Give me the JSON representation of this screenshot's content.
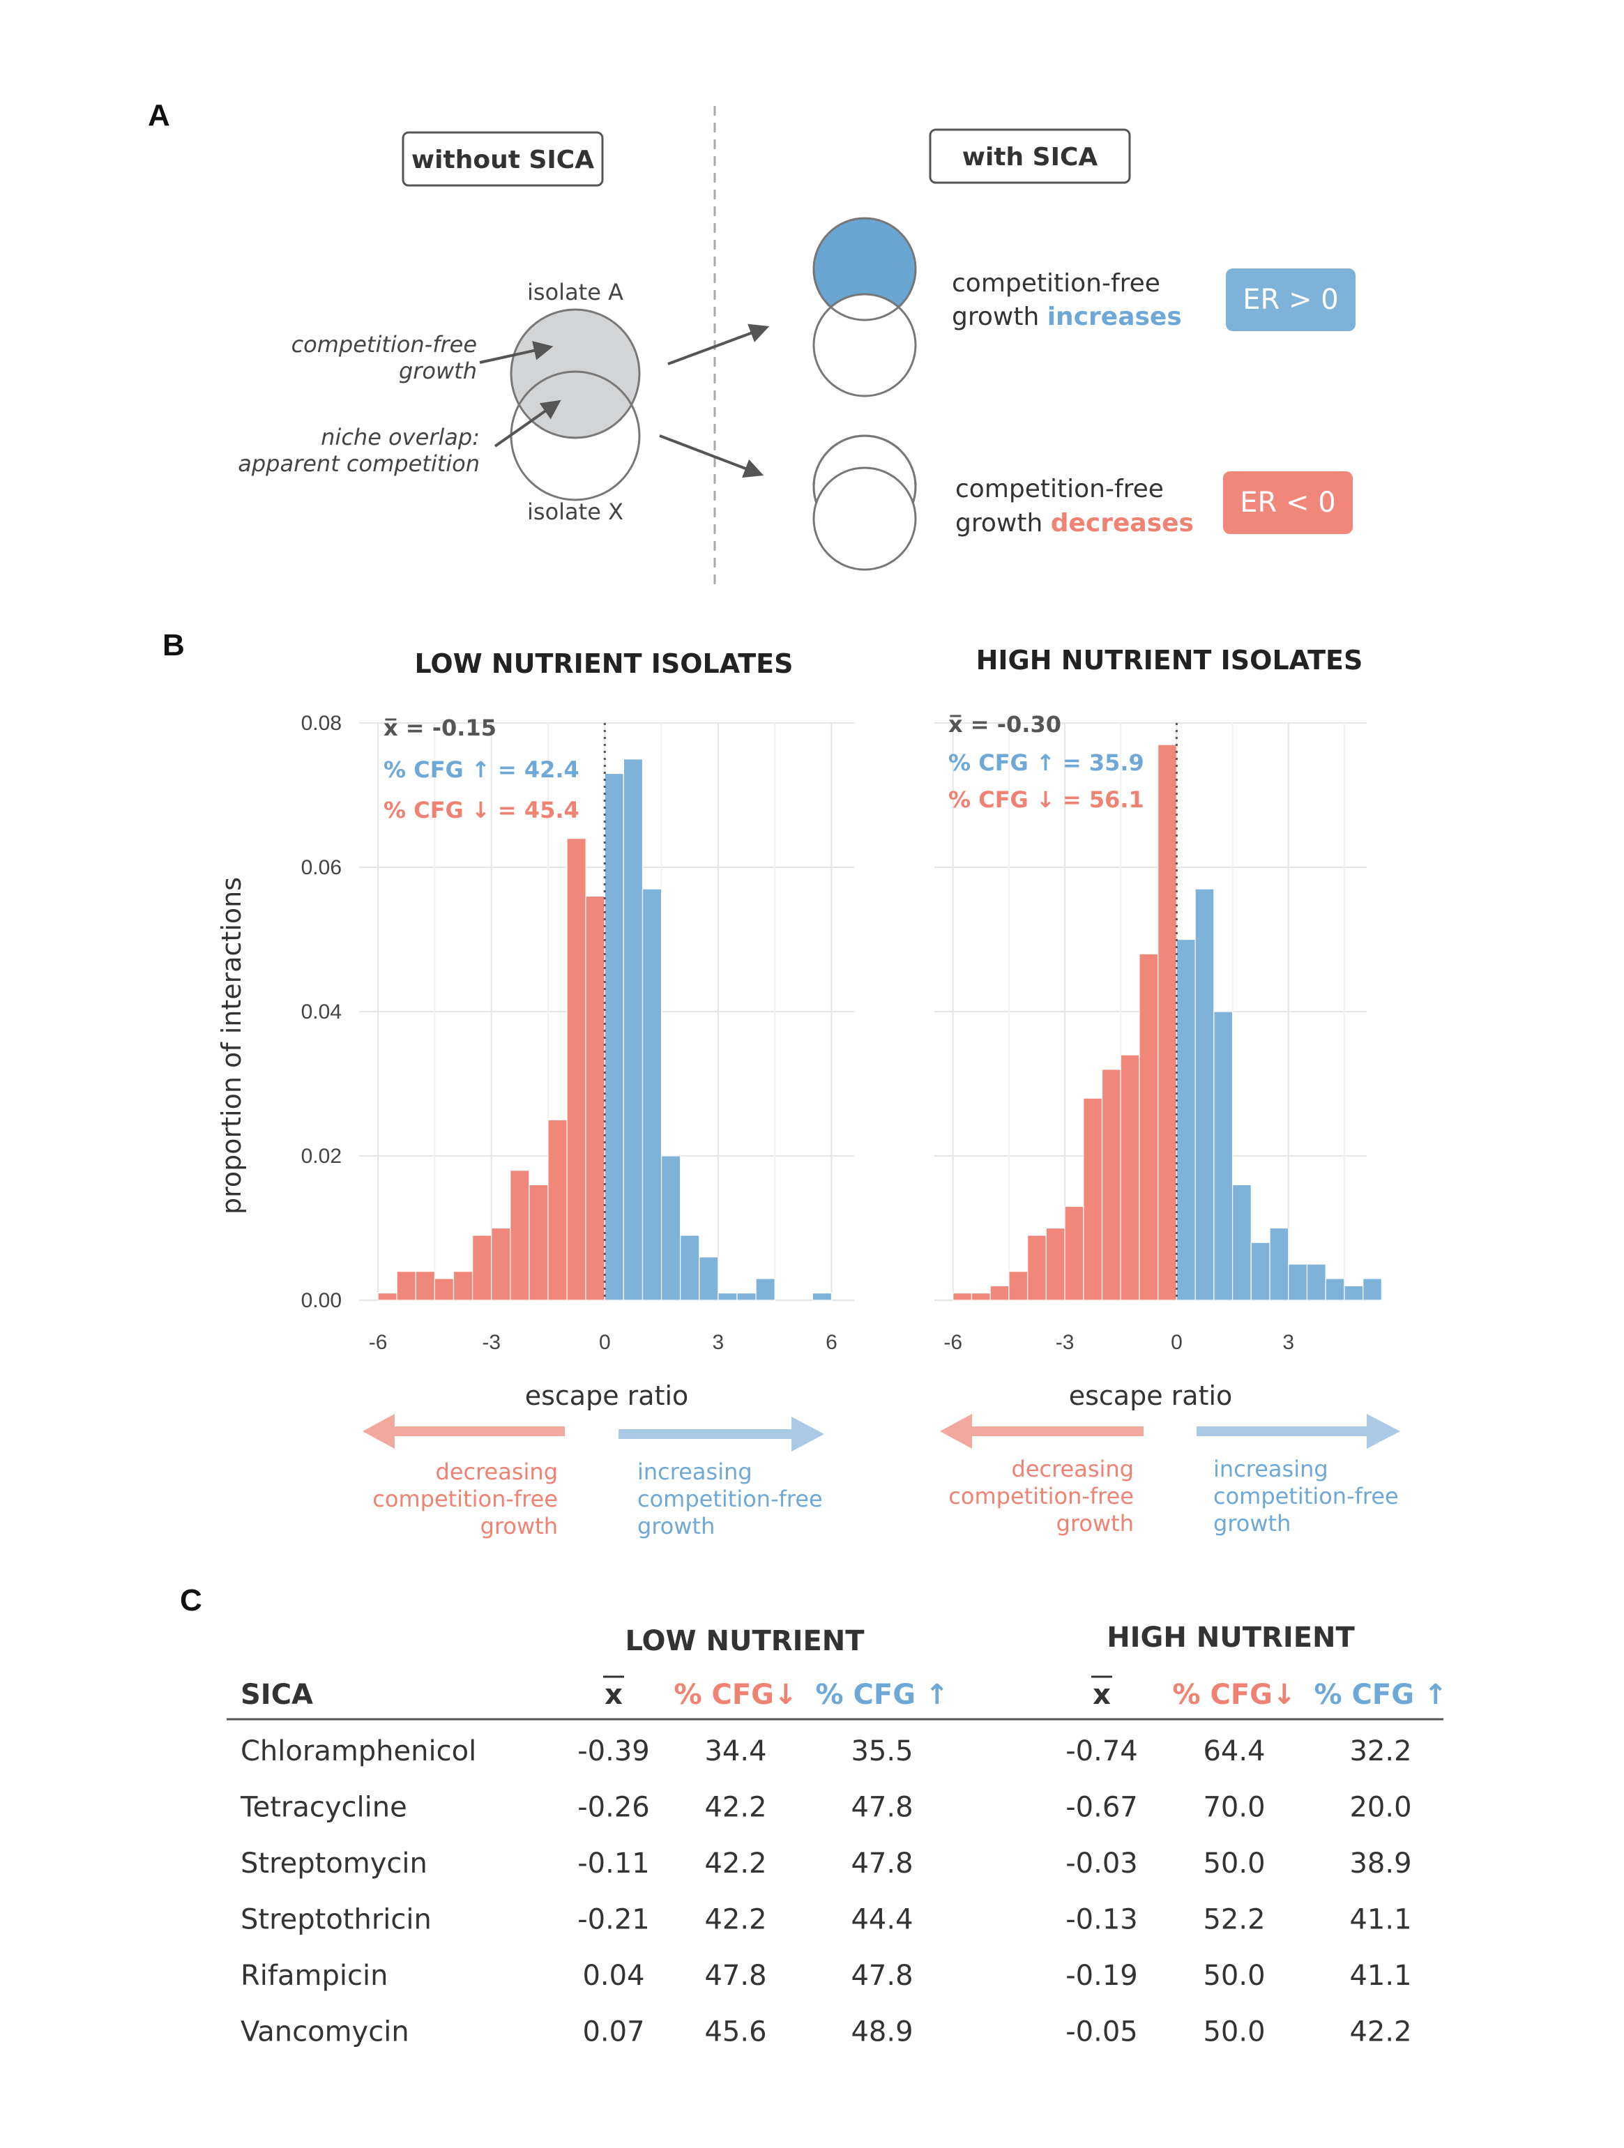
{
  "colors": {
    "blue": "#7fb2d8",
    "red": "#f0877a",
    "blue_text": "#6ea8d6",
    "red_text": "#ef8272",
    "grid": "#e5e5e5",
    "circle_gray": "#d3d4d6"
  },
  "panel_a": {
    "letter": "A",
    "box_without": "without SICA",
    "box_with": "with SICA",
    "isolate_a": "isolate A",
    "isolate_x": "isolate X",
    "cfg_line1": "competition-free",
    "cfg_line2": "growth",
    "niche_line1": "niche overlap:",
    "niche_line2": "apparent competition",
    "inc_line1": "competition-free",
    "inc_line2_prefix": "growth ",
    "inc_word": "increases",
    "dec_line1": "competition-free",
    "dec_line2_prefix": "growth ",
    "dec_word": "decreases",
    "er_pos": "ER > 0",
    "er_neg": "ER < 0"
  },
  "panel_b": {
    "letter": "B",
    "ylabel": "proportion of interactions",
    "arrow_left": [
      "decreasing",
      "competition-free",
      "growth"
    ],
    "arrow_right": [
      "increasing",
      "competition-free",
      "growth"
    ]
  },
  "chart_data": [
    {
      "type": "bar",
      "title": "LOW NUTRIENT ISOLATES",
      "xlabel": "escape ratio",
      "ylabel": "proportion of interactions",
      "xlim": [
        -6.5,
        6.6
      ],
      "xticks": [
        "-6",
        "-3",
        "0",
        "3",
        "6"
      ],
      "ylim": [
        0,
        0.08
      ],
      "yticks": [
        "0.00",
        "0.02",
        "0.04",
        "0.06",
        "0.08"
      ],
      "bin_width": 0.5,
      "bin_starts": [
        -6.0,
        -5.5,
        -5.0,
        -4.5,
        -4.0,
        -3.5,
        -3.0,
        -2.5,
        -2.0,
        -1.5,
        -1.0,
        -0.5,
        0.0,
        0.5,
        1.0,
        1.5,
        2.0,
        2.5,
        3.0,
        3.5,
        4.0,
        4.5,
        5.0,
        5.5
      ],
      "values": [
        0.001,
        0.004,
        0.004,
        0.003,
        0.004,
        0.009,
        0.01,
        0.018,
        0.016,
        0.025,
        0.064,
        0.056,
        0.073,
        0.075,
        0.057,
        0.02,
        0.009,
        0.006,
        0.001,
        0.001,
        0.003,
        0.0,
        0.0,
        0.001
      ],
      "negative_color": "#f0877a",
      "positive_color": "#7fb2d8",
      "stats": {
        "mean": "x̅ = -0.15",
        "cfg_up": "% CFG ↑ = 42.4",
        "cfg_down": "% CFG ↓ = 45.4"
      }
    },
    {
      "type": "bar",
      "title": "HIGH NUTRIENT ISOLATES",
      "xlabel": "escape ratio",
      "ylabel": "proportion of interactions",
      "xlim": [
        -6.5,
        5.1
      ],
      "xticks": [
        "-6",
        "-3",
        "0",
        "3"
      ],
      "ylim": [
        0,
        0.08
      ],
      "yticks": [
        "0.00",
        "0.02",
        "0.04",
        "0.06",
        "0.08"
      ],
      "bin_width": 0.5,
      "bin_starts": [
        -6.0,
        -5.5,
        -5.0,
        -4.5,
        -4.0,
        -3.5,
        -3.0,
        -2.5,
        -2.0,
        -1.5,
        -1.0,
        -0.5,
        0.0,
        0.5,
        1.0,
        1.5,
        2.0,
        2.5,
        3.0,
        3.5,
        4.0,
        4.5,
        5.0
      ],
      "values": [
        0.001,
        0.001,
        0.002,
        0.004,
        0.009,
        0.01,
        0.013,
        0.028,
        0.032,
        0.034,
        0.048,
        0.077,
        0.05,
        0.057,
        0.04,
        0.016,
        0.008,
        0.01,
        0.005,
        0.005,
        0.003,
        0.002,
        0.003
      ],
      "negative_color": "#f0877a",
      "positive_color": "#7fb2d8",
      "stats": {
        "mean": "x̅ = -0.30",
        "cfg_up": "% CFG ↑ = 35.9",
        "cfg_down": "% CFG ↓ = 56.1"
      }
    }
  ],
  "panel_c": {
    "letter": "C",
    "group_low": "LOW NUTRIENT",
    "group_high": "HIGH NUTRIENT",
    "col_sica": "SICA",
    "col_mean": "x",
    "col_down": "% CFG↓",
    "col_up": "% CFG ↑",
    "rows": [
      {
        "sica": "Chloramphenicol",
        "low_mean": "-0.39",
        "low_down": "34.4",
        "low_up": "35.5",
        "high_mean": "-0.74",
        "high_down": "64.4",
        "high_up": "32.2"
      },
      {
        "sica": "Tetracycline",
        "low_mean": "-0.26",
        "low_down": "42.2",
        "low_up": "47.8",
        "high_mean": "-0.67",
        "high_down": "70.0",
        "high_up": "20.0"
      },
      {
        "sica": "Streptomycin",
        "low_mean": "-0.11",
        "low_down": "42.2",
        "low_up": "47.8",
        "high_mean": "-0.03",
        "high_down": "50.0",
        "high_up": "38.9"
      },
      {
        "sica": "Streptothricin",
        "low_mean": "-0.21",
        "low_down": "42.2",
        "low_up": "44.4",
        "high_mean": "-0.13",
        "high_down": "52.2",
        "high_up": "41.1"
      },
      {
        "sica": "Rifampicin",
        "low_mean": "0.04",
        "low_down": "47.8",
        "low_up": "47.8",
        "high_mean": "-0.19",
        "high_down": "50.0",
        "high_up": "41.1"
      },
      {
        "sica": "Vancomycin",
        "low_mean": "0.07",
        "low_down": "45.6",
        "low_up": "48.9",
        "high_mean": "-0.05",
        "high_down": "50.0",
        "high_up": "42.2"
      }
    ]
  }
}
